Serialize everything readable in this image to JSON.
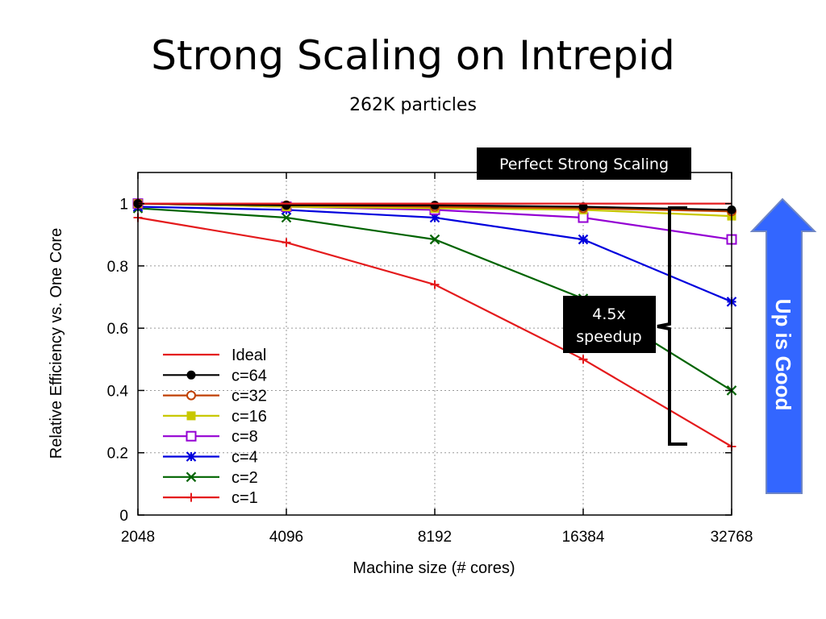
{
  "slide": {
    "title": "Strong Scaling on Intrepid",
    "subtitle": "262K particles"
  },
  "annotations": {
    "perfect_label": "Perfect Strong Scaling",
    "speedup_line1": "4.5x",
    "speedup_line2": "speedup",
    "up_is_good": "Up is Good",
    "arrow_color": "#3366ff"
  },
  "chart_data": {
    "type": "line",
    "xlabel": "Machine size (# cores)",
    "ylabel": "Relative Efficiency vs. One Core",
    "x": [
      2048,
      4096,
      8192,
      16384,
      32768
    ],
    "x_ticks": [
      "2048",
      "4096",
      "8192",
      "16384",
      "32768"
    ],
    "x_scale": "log2",
    "ylim": [
      0,
      1.1
    ],
    "y_ticks": [
      "0",
      "0.2",
      "0.4",
      "0.6",
      "0.8",
      "1"
    ],
    "grid": true,
    "legend_position": "lower-left",
    "series": [
      {
        "name": "Ideal",
        "values": [
          1.0,
          1.0,
          1.0,
          1.0,
          1.0
        ],
        "color": "#e41a1c",
        "marker": "none"
      },
      {
        "name": "c=64",
        "values": [
          1.0,
          0.995,
          0.995,
          0.99,
          0.98
        ],
        "color": "#000000",
        "marker": "filled-circle"
      },
      {
        "name": "c=32",
        "values": [
          1.0,
          0.995,
          0.99,
          0.985,
          0.975
        ],
        "color": "#c04000",
        "marker": "open-circle"
      },
      {
        "name": "c=16",
        "values": [
          1.0,
          0.99,
          0.985,
          0.98,
          0.96
        ],
        "color": "#c8c800",
        "marker": "filled-square"
      },
      {
        "name": "c=8",
        "values": [
          1.0,
          0.99,
          0.98,
          0.955,
          0.885
        ],
        "color": "#9400d3",
        "marker": "open-square"
      },
      {
        "name": "c=4",
        "values": [
          0.99,
          0.98,
          0.955,
          0.885,
          0.685
        ],
        "color": "#0000dd",
        "marker": "star"
      },
      {
        "name": "c=2",
        "values": [
          0.985,
          0.955,
          0.885,
          0.695,
          0.4
        ],
        "color": "#006400",
        "marker": "x"
      },
      {
        "name": "c=1",
        "values": [
          0.955,
          0.875,
          0.74,
          0.5,
          0.22
        ],
        "color": "#e41a1c",
        "marker": "plus"
      }
    ]
  }
}
